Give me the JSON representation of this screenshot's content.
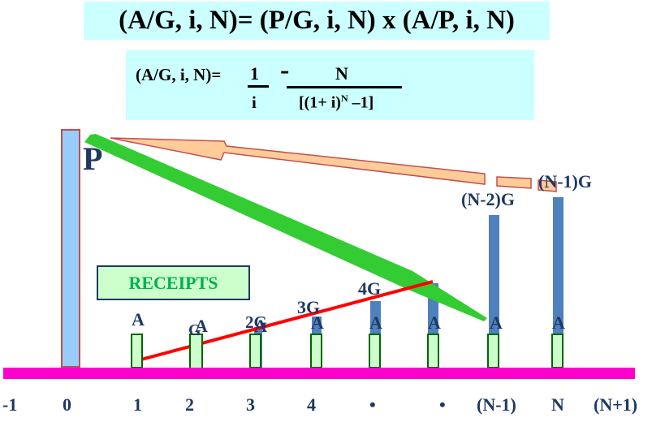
{
  "title": "(A/G, i, N)= (P/G, i, N) x (A/P, i, N)",
  "formula": {
    "lhs": "(A/G, i, N)=",
    "num1": "1",
    "den1": "i",
    "minus": "-",
    "num2": "N",
    "den2_base": "[(1+ i)",
    "den2_exp": "N",
    "den2_tail": " –1]"
  },
  "receipts_label": "RECEIPTS",
  "p_label": "P",
  "a_labels": [
    "A",
    "A",
    "A",
    "A",
    "A",
    "A",
    "A",
    "A"
  ],
  "g_labels": {
    "g": "G",
    "two_g": "2G",
    "three_g": "3G",
    "four_g": "4G",
    "n_minus_2_g": "(N-2)G",
    "n_minus_1_g": "(N-1)G"
  },
  "axis_ticks": [
    "-1",
    "0",
    "1",
    "2",
    "3",
    "4",
    "•",
    "•",
    "(N-1)",
    "N",
    "(N+1)"
  ],
  "colors": {
    "axis": "#ff00cc",
    "p_bar": "#99ccff",
    "g_bar": "#4f81bd",
    "a_bar": "#ccffcc",
    "green_arrow": "#33cc33",
    "orange_arrow": "#ffcc99",
    "red_line": "#ff0000",
    "label": "#1f3864",
    "box_fill": "#ccffff"
  }
}
